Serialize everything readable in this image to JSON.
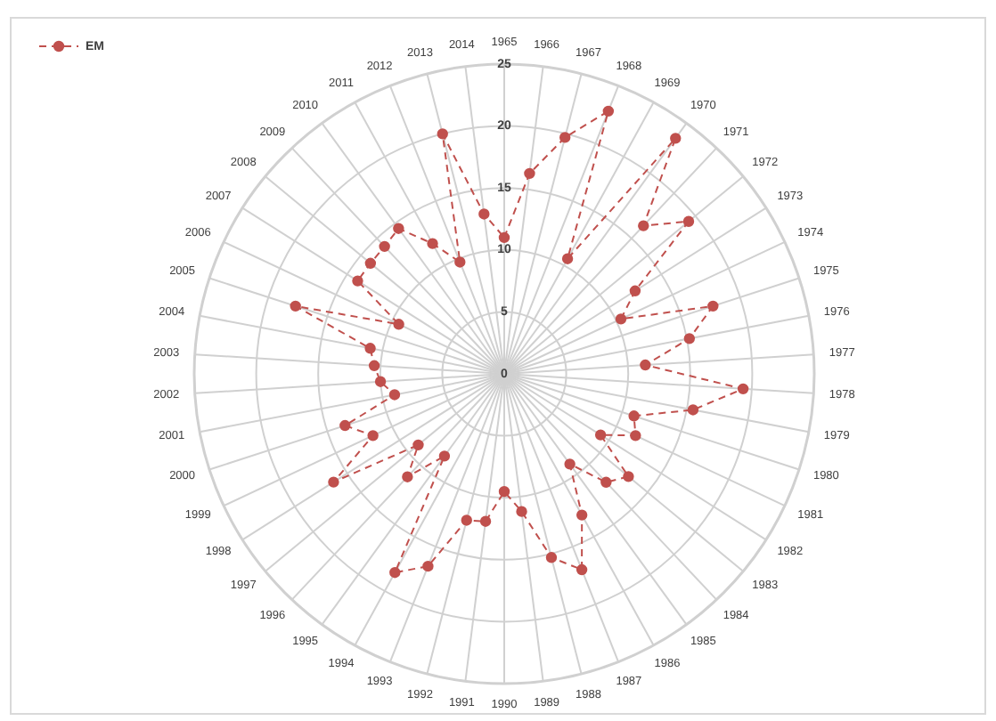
{
  "chart_data": {
    "type": "radar",
    "categories": [
      "1965",
      "1966",
      "1967",
      "1968",
      "1969",
      "1970",
      "1971",
      "1972",
      "1973",
      "1974",
      "1975",
      "1976",
      "1977",
      "1978",
      "1979",
      "1980",
      "1981",
      "1982",
      "1983",
      "1984",
      "1985",
      "1986",
      "1987",
      "1988",
      "1989",
      "1990",
      "1991",
      "1992",
      "1993",
      "1994",
      "1995",
      "1996",
      "1997",
      "1998",
      "1999",
      "2000",
      "2001",
      "2002",
      "2003",
      "2004",
      "2005",
      "2006",
      "2007",
      "2008",
      "2009",
      "2010",
      "2011",
      "2012",
      "2013",
      "2014"
    ],
    "series": [
      {
        "name": "EM",
        "color": "#c0504d",
        "values": [
          11,
          16.3,
          19.7,
          22.8,
          10.6,
          23.5,
          16.4,
          19.3,
          12.5,
          10.4,
          17.7,
          15.2,
          11.4,
          19.3,
          15.5,
          11,
          11.7,
          9.2,
          13,
          12,
          9,
          13,
          17,
          15.3,
          11.2,
          9.5,
          12,
          12.2,
          16.7,
          18.3,
          8.2,
          11.4,
          9,
          16.3,
          11.7,
          13.5,
          9,
          10,
          10.5,
          11,
          17.7,
          9.4,
          14,
          14,
          14.1,
          14.5,
          12,
          9.7,
          20,
          13
        ]
      }
    ],
    "ylim": [
      0,
      25
    ],
    "yticks": [
      0,
      5,
      10,
      15,
      20,
      25
    ],
    "grid": true,
    "legend": "top left",
    "marker": "circle",
    "line_style": "dashed"
  }
}
